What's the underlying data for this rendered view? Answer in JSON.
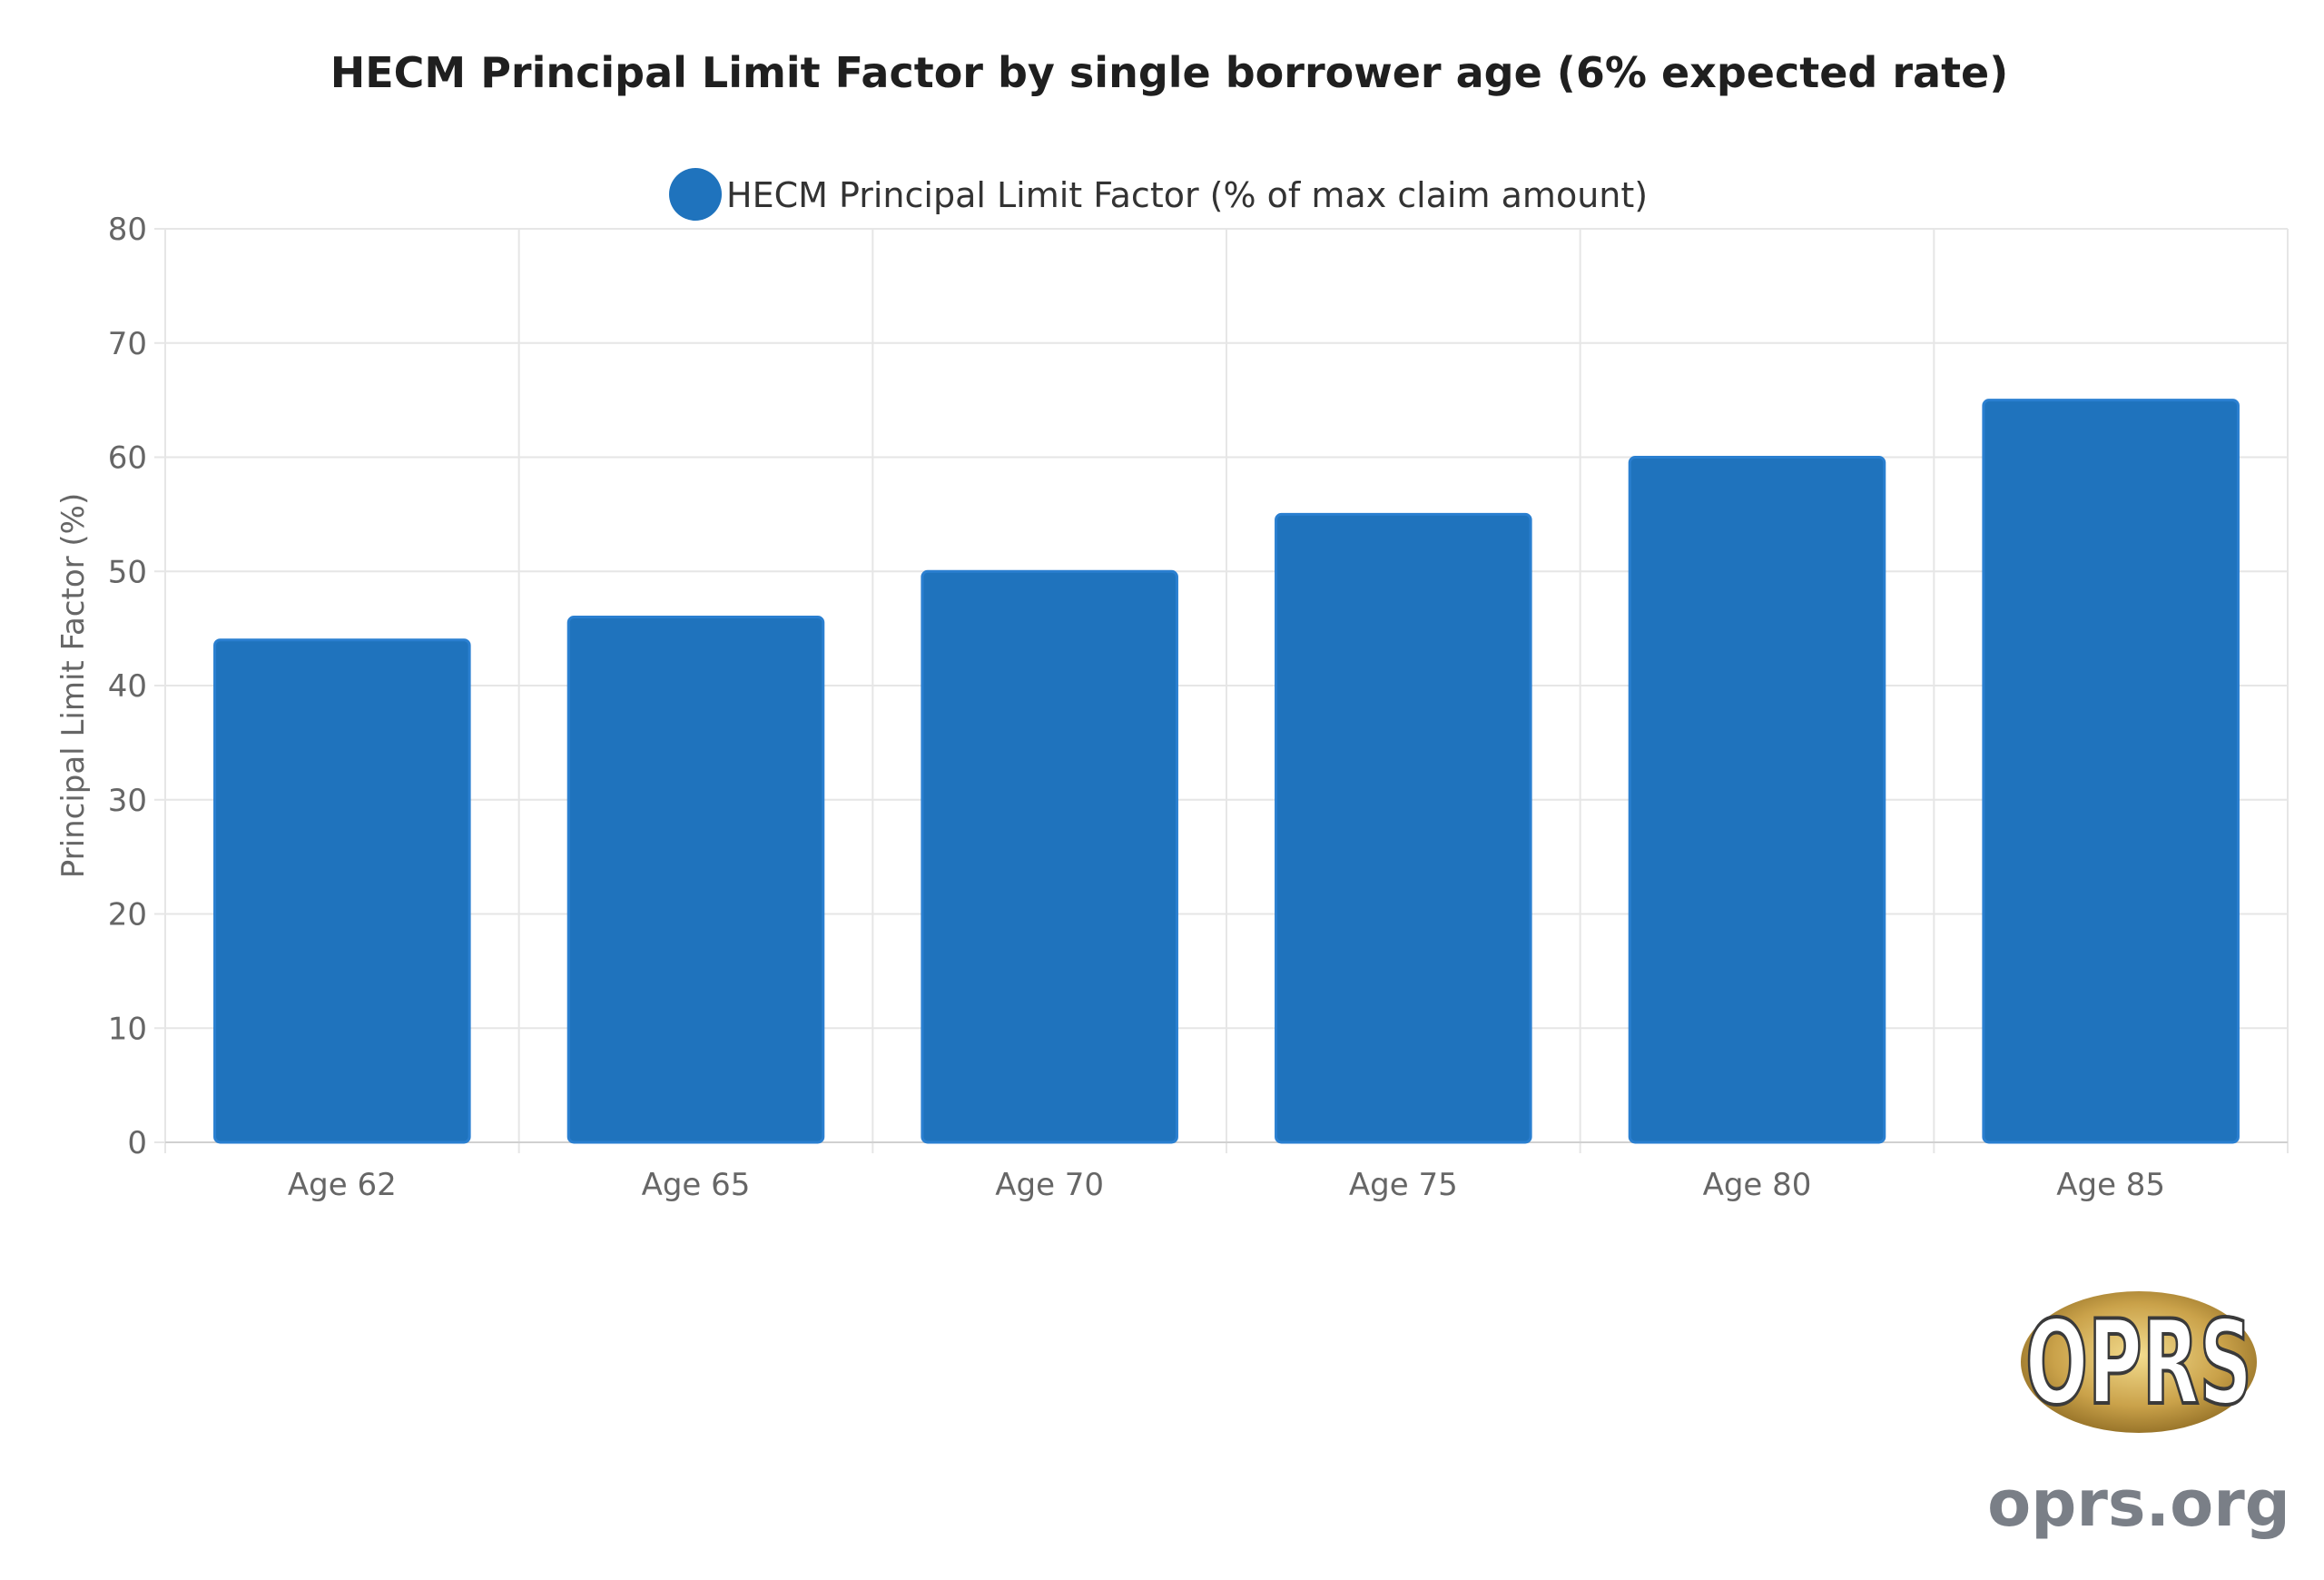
{
  "chart_data": {
    "type": "bar",
    "title": "HECM Principal Limit Factor by single borrower age (6% expected rate)",
    "categories": [
      "Age 62",
      "Age 65",
      "Age 70",
      "Age 75",
      "Age 80",
      "Age 85"
    ],
    "series": [
      {
        "name": "HECM Principal Limit Factor (% of max claim amount)",
        "values": [
          44,
          46,
          50,
          55,
          60,
          65
        ],
        "color": "#1f73bd"
      }
    ],
    "xlabel": "",
    "ylabel": "Principal Limit Factor (%)",
    "ylim": [
      0,
      80
    ],
    "yticks": [
      0,
      10,
      20,
      30,
      40,
      50,
      60,
      70,
      80
    ],
    "grid": true,
    "legend_position": "top-center"
  },
  "branding": {
    "logo_text": "OPRS",
    "site_text": "oprs.org"
  },
  "colors": {
    "bar": "#1f73bd",
    "bar_border": "#2a7fd0",
    "grid": "#e6e6e6",
    "tick_text": "#666666",
    "title_text": "#1f1f1f",
    "logo_gold": "#c9a64a",
    "site_text": "#7a7f87"
  }
}
